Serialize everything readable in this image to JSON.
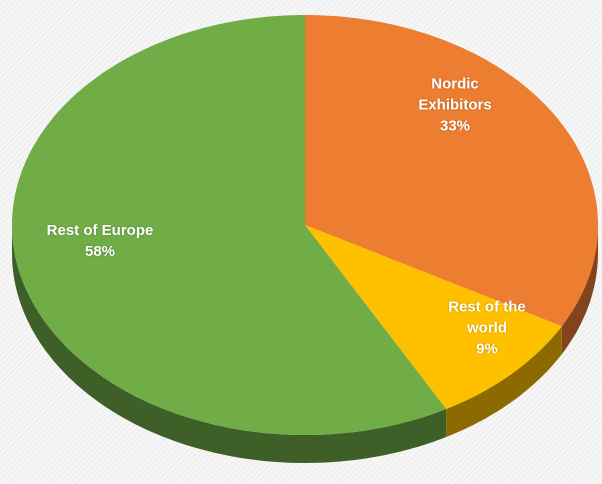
{
  "chart_data": {
    "type": "pie",
    "categories": [
      "Nordic Exhibitors",
      "Rest of the world",
      "Rest of Europe"
    ],
    "values": [
      33,
      9,
      58
    ],
    "value_labels": [
      "33%",
      "9%",
      "58%"
    ],
    "colors": [
      "#ed7d31",
      "#ffc000",
      "#70ad47"
    ]
  }
}
